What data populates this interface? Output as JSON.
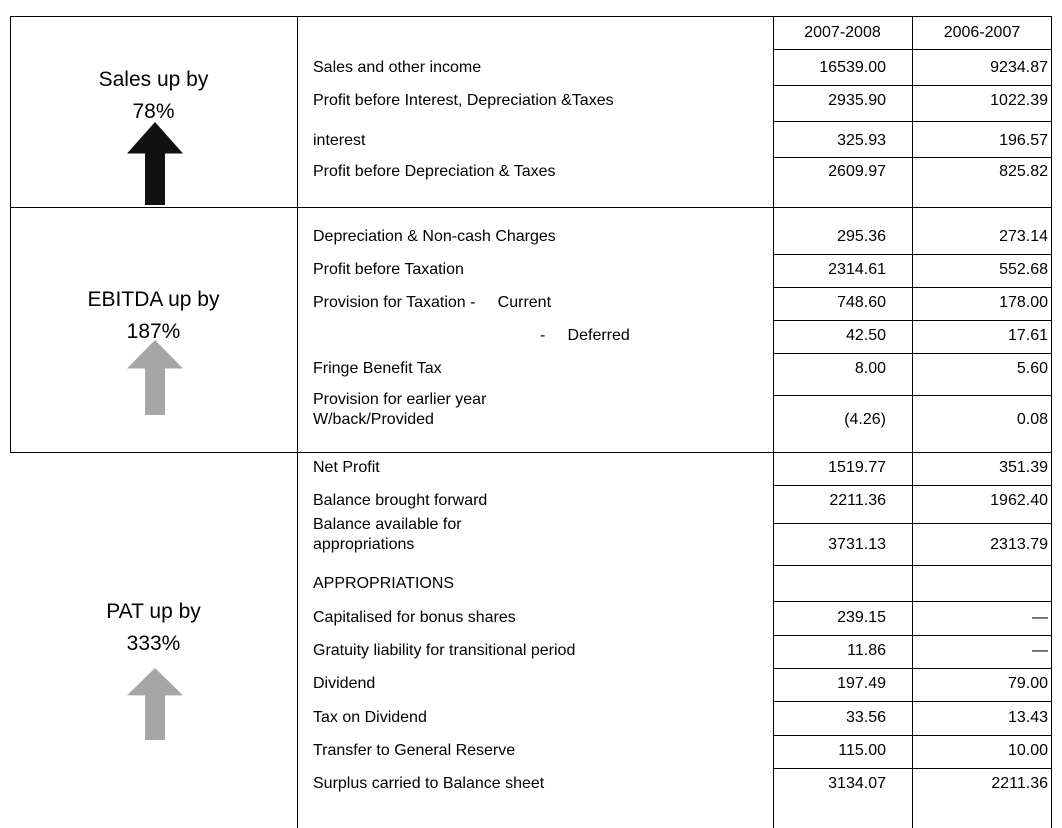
{
  "table": {
    "header": {
      "current": "2007-2008",
      "previous": "2006-2007"
    },
    "sections": [
      {
        "label": [
          "Sales up by",
          "78%"
        ],
        "arrow": "black",
        "rows": [
          {
            "label": [
              "Sales and other income"
            ],
            "current": "16539.00",
            "previous": "9234.87"
          },
          {
            "label": [
              "Profit before Interest, Depreciation &Taxes"
            ],
            "current": "2935.90",
            "previous": "1022.39"
          },
          {
            "label": [
              "interest"
            ],
            "current": "325.93",
            "previous": "196.57"
          },
          {
            "label": [
              "Profit before Depreciation & Taxes"
            ],
            "current": "2609.97",
            "previous": "825.82"
          }
        ]
      },
      {
        "label": [
          "EBITDA up by",
          "187%"
        ],
        "arrow": "gray",
        "rows": [
          {
            "label": [
              "Depreciation & Non-cash Charges"
            ],
            "current": "295.36",
            "previous": "273.14"
          },
          {
            "label": [
              "Profit before Taxation"
            ],
            "current": "2314.61",
            "previous": "552.68"
          },
          {
            "label": [
              "Provision for Taxation -     Current"
            ],
            "current": "748.60",
            "previous": "178.00"
          },
          {
            "label": [
              "-     Deferred"
            ],
            "current": "42.50",
            "previous": "17.61"
          },
          {
            "label": [
              "Fringe Benefit Tax"
            ],
            "current": "8.00",
            "previous": "5.60"
          },
          {
            "label": [
              "Provision for earlier year",
              "W/back/Provided"
            ],
            "current": "(4.26)",
            "previous": "0.08"
          }
        ]
      },
      {
        "label": [
          "PAT up by",
          "333%"
        ],
        "arrow": "gray",
        "rows": [
          {
            "label": [
              "Net Profit"
            ],
            "current": "1519.77",
            "previous": "351.39"
          },
          {
            "label": [
              "Balance brought forward"
            ],
            "current": "2211.36",
            "previous": "1962.40"
          },
          {
            "label": [
              "Balance available for",
              "appropriations"
            ],
            "current": "3731.13",
            "previous": "2313.79"
          },
          {
            "label": [
              "APPROPRIATIONS"
            ],
            "current": null,
            "previous": null
          },
          {
            "label": [
              "Capitalised for bonus shares"
            ],
            "current": "239.15",
            "previous": "—"
          },
          {
            "label": [
              "Gratuity liability for transitional period"
            ],
            "current": "11.86",
            "previous": "—"
          },
          {
            "label": [
              "Dividend"
            ],
            "current": "197.49",
            "previous": "79.00"
          },
          {
            "label": [
              "Tax on Dividend"
            ],
            "current": "33.56",
            "previous": "13.43"
          },
          {
            "label": [
              "Transfer to General Reserve"
            ],
            "current": "115.00",
            "previous": "10.00"
          },
          {
            "label": [
              "Surplus carried to Balance sheet"
            ],
            "current": "3134.07",
            "previous": "2211.36"
          }
        ]
      }
    ]
  }
}
